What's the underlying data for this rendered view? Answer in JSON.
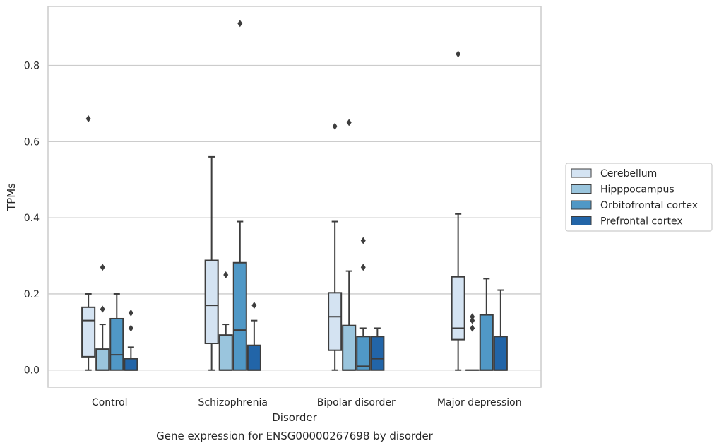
{
  "caption": "Gene expression for ENSG00000267698 by disorder",
  "chart_data": {
    "type": "box",
    "xlabel": "Disorder",
    "ylabel": "TPMs",
    "ylim": [
      -0.045,
      0.955
    ],
    "yticks": [
      0.0,
      0.2,
      0.4,
      0.6,
      0.8
    ],
    "ytick_labels": [
      "0.0",
      "0.2",
      "0.4",
      "0.6",
      "0.8"
    ],
    "grid": "horizontal",
    "legend_position": "right",
    "categories": [
      "Control",
      "Schizophrenia",
      "Bipolar disorder",
      "Major depression"
    ],
    "series": [
      {
        "name": "Cerebellum",
        "color": "#d4e3f2",
        "boxes": [
          {
            "whislo": 0.0,
            "q1": 0.035,
            "med": 0.13,
            "q3": 0.165,
            "whishi": 0.2,
            "fliers": [
              0.66
            ]
          },
          {
            "whislo": 0.0,
            "q1": 0.07,
            "med": 0.17,
            "q3": 0.288,
            "whishi": 0.56,
            "fliers": []
          },
          {
            "whislo": 0.0,
            "q1": 0.052,
            "med": 0.14,
            "q3": 0.203,
            "whishi": 0.39,
            "fliers": [
              0.64
            ]
          },
          {
            "whislo": 0.0,
            "q1": 0.08,
            "med": 0.11,
            "q3": 0.245,
            "whishi": 0.41,
            "fliers": [
              0.83
            ]
          }
        ]
      },
      {
        "name": "Hipppocampus",
        "color": "#9ac5dd",
        "boxes": [
          {
            "whislo": 0.0,
            "q1": 0.0,
            "med": 0.0,
            "q3": 0.055,
            "whishi": 0.12,
            "fliers": [
              0.16,
              0.27
            ]
          },
          {
            "whislo": 0.0,
            "q1": 0.0,
            "med": 0.0,
            "q3": 0.092,
            "whishi": 0.12,
            "fliers": [
              0.25
            ]
          },
          {
            "whislo": 0.0,
            "q1": 0.0,
            "med": 0.0,
            "q3": 0.117,
            "whishi": 0.26,
            "fliers": [
              0.65
            ]
          },
          {
            "whislo": 0.0,
            "q1": 0.0,
            "med": 0.0,
            "q3": 0.0,
            "whishi": 0.0,
            "fliers": [
              0.11,
              0.13,
              0.14
            ]
          }
        ]
      },
      {
        "name": "Orbitofrontal cortex",
        "color": "#5098c6",
        "boxes": [
          {
            "whislo": 0.0,
            "q1": 0.0,
            "med": 0.04,
            "q3": 0.135,
            "whishi": 0.2,
            "fliers": []
          },
          {
            "whislo": 0.0,
            "q1": 0.0,
            "med": 0.105,
            "q3": 0.282,
            "whishi": 0.39,
            "fliers": [
              0.91
            ]
          },
          {
            "whislo": 0.0,
            "q1": 0.0,
            "med": 0.01,
            "q3": 0.088,
            "whishi": 0.11,
            "fliers": [
              0.27,
              0.34
            ]
          },
          {
            "whislo": 0.0,
            "q1": 0.0,
            "med": 0.0,
            "q3": 0.145,
            "whishi": 0.24,
            "fliers": []
          }
        ]
      },
      {
        "name": "Prefrontal cortex",
        "color": "#2265a8",
        "boxes": [
          {
            "whislo": 0.0,
            "q1": 0.0,
            "med": 0.0,
            "q3": 0.03,
            "whishi": 0.06,
            "fliers": [
              0.11,
              0.15
            ]
          },
          {
            "whislo": 0.0,
            "q1": 0.0,
            "med": 0.0,
            "q3": 0.065,
            "whishi": 0.13,
            "fliers": [
              0.17
            ]
          },
          {
            "whislo": 0.0,
            "q1": 0.0,
            "med": 0.03,
            "q3": 0.088,
            "whishi": 0.11,
            "fliers": []
          },
          {
            "whislo": 0.0,
            "q1": 0.0,
            "med": 0.0,
            "q3": 0.088,
            "whishi": 0.21,
            "fliers": []
          }
        ]
      }
    ]
  }
}
